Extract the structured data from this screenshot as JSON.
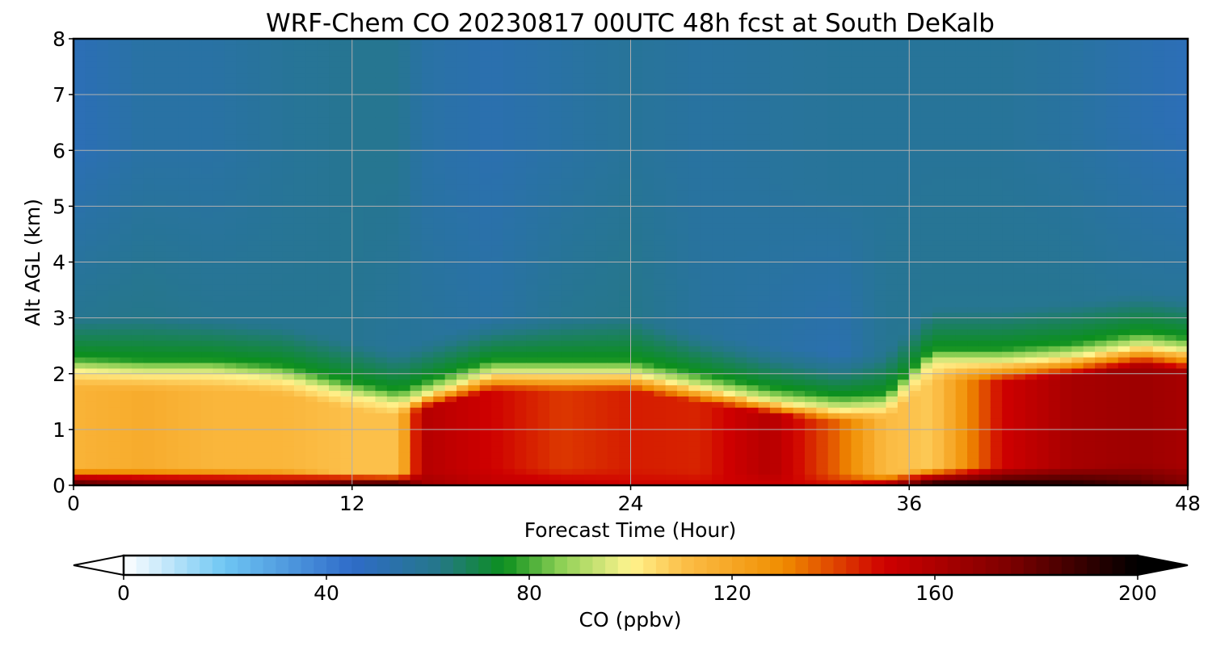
{
  "chart_data": {
    "type": "heatmap",
    "title": "WRF-Chem CO  20230817 00UTC 48h fcst at South DeKalb",
    "xlabel": "Forecast Time (Hour)",
    "ylabel": "Alt AGL (km)",
    "xlim": [
      0,
      48
    ],
    "ylim": [
      0,
      8
    ],
    "x_ticks": [
      0,
      12,
      24,
      36,
      48
    ],
    "y_ticks": [
      0,
      1,
      2,
      3,
      4,
      5,
      6,
      7,
      8
    ],
    "grid": true,
    "colorbar": {
      "label": "CO  (ppbv)",
      "range": [
        0,
        200
      ],
      "ticks": [
        0,
        40,
        80,
        120,
        160,
        200
      ],
      "extend": "both",
      "stops": [
        {
          "v": 0,
          "c": "#ffffff"
        },
        {
          "v": 20,
          "c": "#6ec6f3"
        },
        {
          "v": 45,
          "c": "#2f6bc9"
        },
        {
          "v": 62,
          "c": "#25778a"
        },
        {
          "v": 75,
          "c": "#0c8f1e"
        },
        {
          "v": 86,
          "c": "#8bcf54"
        },
        {
          "v": 100,
          "c": "#fff48f"
        },
        {
          "v": 110,
          "c": "#fcc04a"
        },
        {
          "v": 130,
          "c": "#f08d00"
        },
        {
          "v": 150,
          "c": "#cf0000"
        },
        {
          "v": 175,
          "c": "#7c0000"
        },
        {
          "v": 200,
          "c": "#000000"
        }
      ]
    },
    "layers": {
      "hours": [
        0,
        3,
        6,
        9,
        12,
        14,
        15,
        18,
        21,
        24,
        27,
        30,
        33,
        35,
        37,
        40,
        43,
        46,
        48
      ],
      "pbl_top_km": [
        2.05,
        2.0,
        2.0,
        1.9,
        1.6,
        1.45,
        1.6,
        2.0,
        2.0,
        2.0,
        1.75,
        1.5,
        1.35,
        1.4,
        2.2,
        2.2,
        2.3,
        2.5,
        2.4
      ],
      "boundary_layer_ppbv": [
        115,
        118,
        114,
        114,
        110,
        110,
        158,
        150,
        142,
        146,
        145,
        158,
        135,
        112,
        108,
        150,
        162,
        165,
        162
      ],
      "surface_ppbv": [
        190,
        180,
        180,
        180,
        195,
        200,
        165,
        155,
        155,
        150,
        150,
        150,
        150,
        165,
        200,
        200,
        195,
        185,
        175
      ],
      "free_troposphere_ppbv": [
        60,
        62,
        60,
        60,
        60,
        58,
        58,
        55,
        60,
        62,
        57,
        55,
        52,
        60,
        60,
        60,
        60,
        58,
        58
      ],
      "upper_ppbv": [
        50,
        55,
        55,
        58,
        60,
        60,
        55,
        52,
        55,
        58,
        56,
        57,
        58,
        58,
        58,
        58,
        56,
        52,
        50
      ]
    }
  }
}
